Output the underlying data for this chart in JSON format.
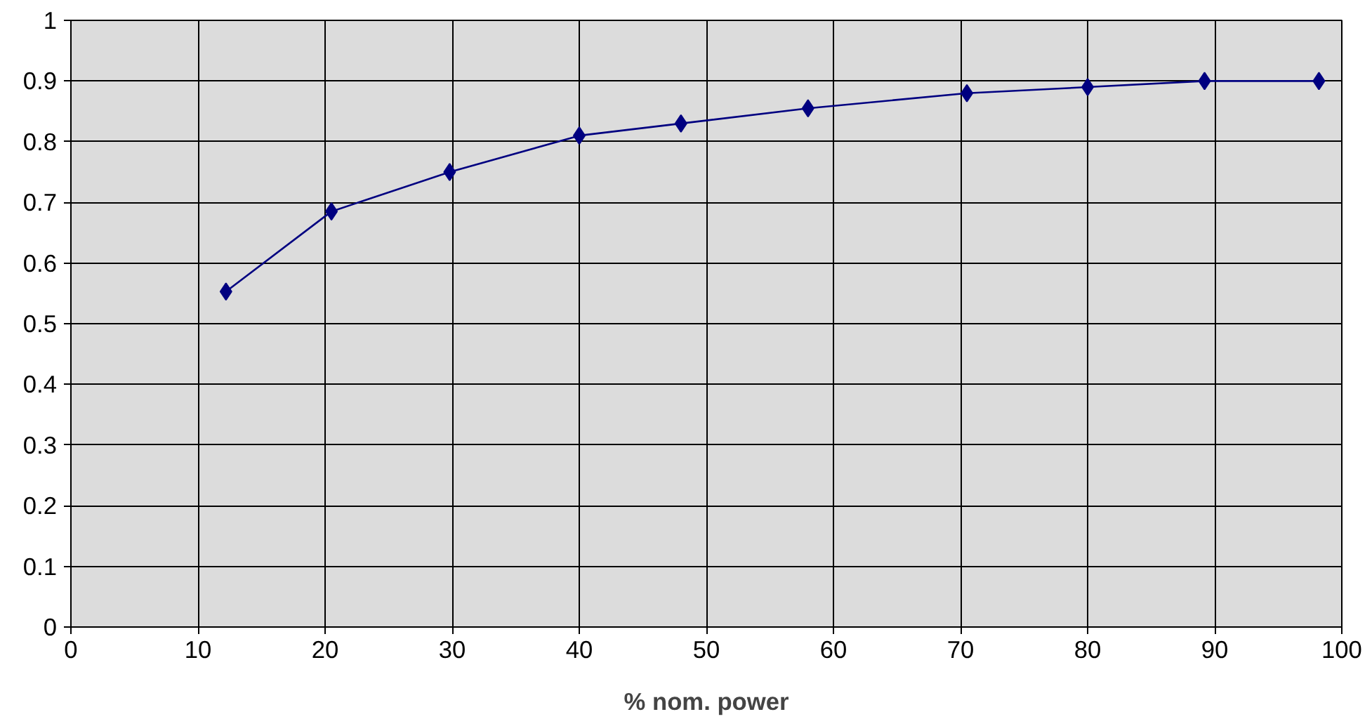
{
  "chart_data": {
    "type": "line",
    "xlabel": "% nom. power",
    "x": [
      12.2,
      20.5,
      29.8,
      40,
      48,
      58,
      70.5,
      80,
      89.2,
      98.2
    ],
    "series": [
      {
        "color": "#000080",
        "values": [
          0.553,
          0.685,
          0.75,
          0.81,
          0.83,
          0.855,
          0.88,
          0.89,
          0.9,
          0.9
        ]
      }
    ],
    "xlim": [
      0,
      100
    ],
    "xticks": [
      0,
      10,
      20,
      30,
      40,
      50,
      60,
      70,
      80,
      90,
      100
    ],
    "ylim": [
      0,
      1
    ],
    "yticks": [
      0,
      0.1,
      0.2,
      0.3,
      0.4,
      0.5,
      0.6,
      0.7,
      0.8,
      0.9,
      1
    ],
    "grid": true,
    "marker": "diamond",
    "line_style": "solid"
  }
}
